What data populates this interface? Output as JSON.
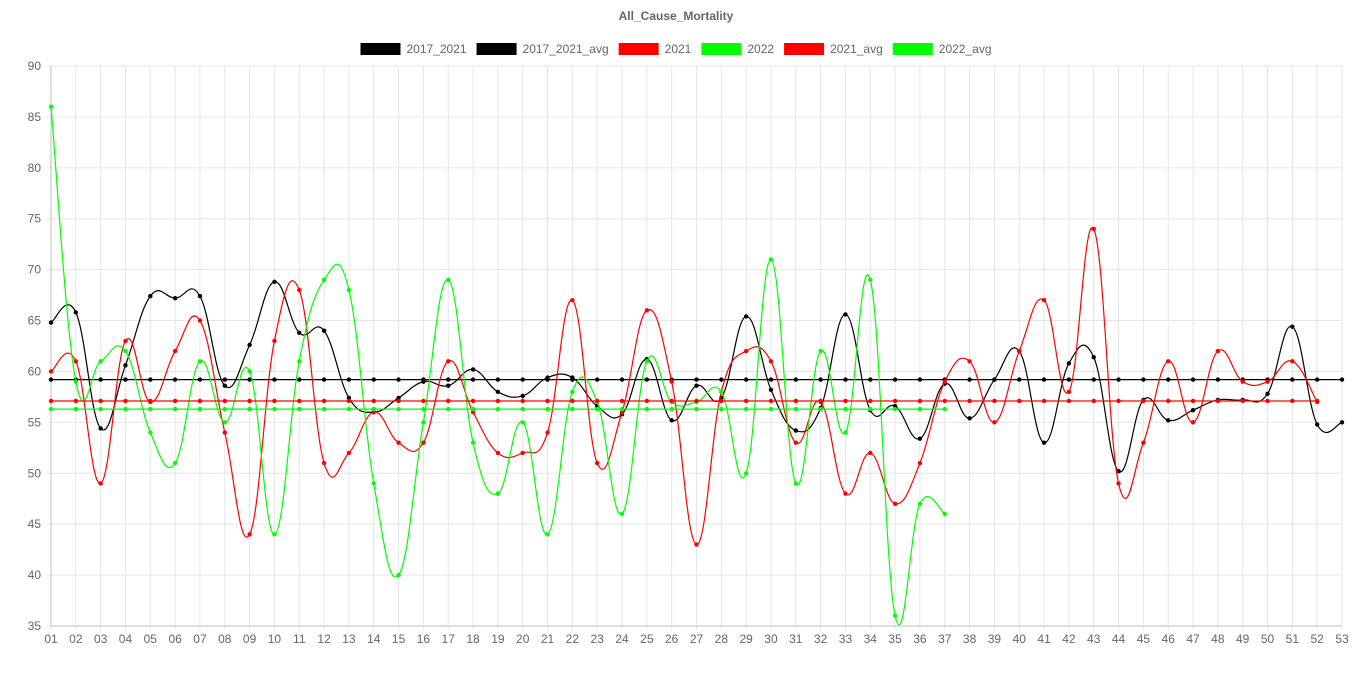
{
  "chart_data": {
    "type": "line",
    "title": "All_Cause_Mortality",
    "xlabel": "",
    "ylabel": "",
    "ylim": [
      35,
      90
    ],
    "yticks": [
      35,
      40,
      45,
      50,
      55,
      60,
      65,
      70,
      75,
      80,
      85,
      90
    ],
    "grid": true,
    "legend_position": "top",
    "categories": [
      "01",
      "02",
      "03",
      "04",
      "05",
      "06",
      "07",
      "08",
      "09",
      "10",
      "11",
      "12",
      "13",
      "14",
      "15",
      "16",
      "17",
      "18",
      "19",
      "20",
      "21",
      "22",
      "23",
      "24",
      "25",
      "26",
      "27",
      "28",
      "29",
      "30",
      "31",
      "32",
      "33",
      "34",
      "35",
      "36",
      "37",
      "38",
      "39",
      "40",
      "41",
      "42",
      "43",
      "44",
      "45",
      "46",
      "47",
      "48",
      "49",
      "50",
      "51",
      "52",
      "53"
    ],
    "series": [
      {
        "name": "2017_2021",
        "color": "#000000",
        "values": [
          64.8,
          65.8,
          54.4,
          60.6,
          67.4,
          67.2,
          67.4,
          58.6,
          62.6,
          68.8,
          63.8,
          64.0,
          57.4,
          56.0,
          57.4,
          59.0,
          58.6,
          60.2,
          58.0,
          57.6,
          59.4,
          59.4,
          56.6,
          55.8,
          61.2,
          55.2,
          58.6,
          57.4,
          65.4,
          58.2,
          54.2,
          56.4,
          65.6,
          56.2,
          56.6,
          53.4,
          58.8,
          55.4,
          59.2,
          62.0,
          53.0,
          60.8,
          61.4,
          50.2,
          57.2,
          55.2,
          56.2,
          57.2,
          57.2,
          57.8,
          64.4,
          54.8,
          55.0
        ]
      },
      {
        "name": "2017_2021_avg",
        "color": "#000000",
        "values": [
          59.2,
          59.2,
          59.2,
          59.2,
          59.2,
          59.2,
          59.2,
          59.2,
          59.2,
          59.2,
          59.2,
          59.2,
          59.2,
          59.2,
          59.2,
          59.2,
          59.2,
          59.2,
          59.2,
          59.2,
          59.2,
          59.2,
          59.2,
          59.2,
          59.2,
          59.2,
          59.2,
          59.2,
          59.2,
          59.2,
          59.2,
          59.2,
          59.2,
          59.2,
          59.2,
          59.2,
          59.2,
          59.2,
          59.2,
          59.2,
          59.2,
          59.2,
          59.2,
          59.2,
          59.2,
          59.2,
          59.2,
          59.2,
          59.2,
          59.2,
          59.2,
          59.2,
          59.2
        ]
      },
      {
        "name": "2021",
        "color": "#ff0000",
        "values": [
          60,
          61,
          49,
          63,
          57,
          62,
          65,
          54,
          44,
          63,
          68,
          51,
          52,
          56,
          53,
          53,
          61,
          56,
          52,
          52,
          54,
          67,
          51,
          56,
          66,
          59,
          43,
          58,
          62,
          61,
          53,
          57,
          48,
          52,
          47,
          51,
          59,
          61,
          55,
          62,
          67,
          58,
          74,
          49,
          53,
          61,
          55,
          62,
          59,
          59,
          61,
          57,
          null
        ]
      },
      {
        "name": "2022",
        "color": "#00ff00",
        "values": [
          86,
          59,
          61,
          62,
          54,
          51,
          61,
          55,
          60,
          44,
          61,
          69,
          68,
          49,
          40,
          55,
          69,
          53,
          48,
          55,
          44,
          58,
          57,
          46,
          61,
          57,
          57,
          58,
          50,
          71,
          49,
          62,
          54,
          69,
          36,
          47,
          46,
          null,
          null,
          null,
          null,
          null,
          null,
          null,
          null,
          null,
          null,
          null,
          null,
          null,
          null,
          null,
          null
        ]
      },
      {
        "name": "2021_avg",
        "color": "#ff0000",
        "values": [
          57.1,
          57.1,
          57.1,
          57.1,
          57.1,
          57.1,
          57.1,
          57.1,
          57.1,
          57.1,
          57.1,
          57.1,
          57.1,
          57.1,
          57.1,
          57.1,
          57.1,
          57.1,
          57.1,
          57.1,
          57.1,
          57.1,
          57.1,
          57.1,
          57.1,
          57.1,
          57.1,
          57.1,
          57.1,
          57.1,
          57.1,
          57.1,
          57.1,
          57.1,
          57.1,
          57.1,
          57.1,
          57.1,
          57.1,
          57.1,
          57.1,
          57.1,
          57.1,
          57.1,
          57.1,
          57.1,
          57.1,
          57.1,
          57.1,
          57.1,
          57.1,
          57.1,
          null
        ]
      },
      {
        "name": "2022_avg",
        "color": "#00ff00",
        "values": [
          56.3,
          56.3,
          56.3,
          56.3,
          56.3,
          56.3,
          56.3,
          56.3,
          56.3,
          56.3,
          56.3,
          56.3,
          56.3,
          56.3,
          56.3,
          56.3,
          56.3,
          56.3,
          56.3,
          56.3,
          56.3,
          56.3,
          56.3,
          56.3,
          56.3,
          56.3,
          56.3,
          56.3,
          56.3,
          56.3,
          56.3,
          56.3,
          56.3,
          56.3,
          56.3,
          56.3,
          56.3,
          null,
          null,
          null,
          null,
          null,
          null,
          null,
          null,
          null,
          null,
          null,
          null,
          null,
          null,
          null,
          null
        ]
      }
    ]
  }
}
